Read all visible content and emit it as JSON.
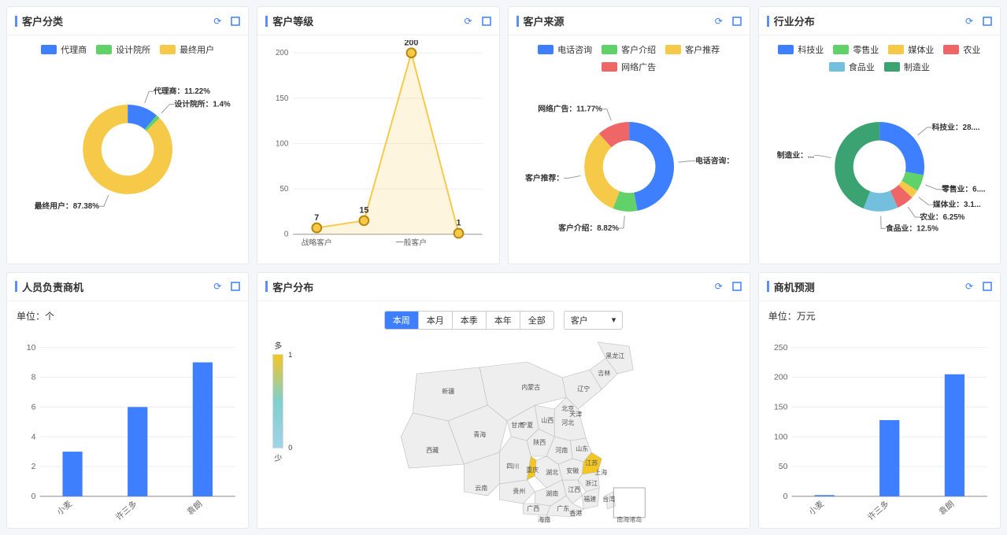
{
  "colors": {
    "blue": "#3d7fff",
    "green": "#61d16a",
    "yellow": "#f7c948",
    "red": "#ee6666",
    "cyan": "#73c0de",
    "darkgreen": "#3ba272",
    "grid": "#e6e8eb",
    "text": "#333333"
  },
  "cards": {
    "customer_category": {
      "title": "客户分类",
      "type": "donut",
      "legend": [
        {
          "label": "代理商",
          "color": "#3d7fff"
        },
        {
          "label": "设计院所",
          "color": "#61d16a"
        },
        {
          "label": "最终用户",
          "color": "#f7c948"
        }
      ],
      "slices": [
        {
          "label": "代理商",
          "pct": 11.22,
          "color": "#3d7fff",
          "text": "代理商：11.22%"
        },
        {
          "label": "设计院所",
          "pct": 1.4,
          "color": "#61d16a",
          "text": "设计院所：1.4%"
        },
        {
          "label": "最终用户",
          "pct": 87.38,
          "color": "#f7c948",
          "text": "最终用户：87.38%"
        }
      ]
    },
    "customer_level": {
      "title": "客户等级",
      "type": "line",
      "ylim": [
        0,
        200
      ],
      "ytick_step": 50,
      "line_color": "#f7c948",
      "marker_stroke": "#b8860b",
      "points": [
        {
          "x": "战略客户",
          "y": 7,
          "label": "7"
        },
        {
          "x": "",
          "y": 15,
          "label": "15"
        },
        {
          "x": "一般客户",
          "y": 200,
          "label": "200"
        },
        {
          "x": "",
          "y": 1,
          "label": "1"
        }
      ]
    },
    "customer_source": {
      "title": "客户来源",
      "type": "donut",
      "legend": [
        {
          "label": "电话咨询",
          "color": "#3d7fff"
        },
        {
          "label": "客户介绍",
          "color": "#61d16a"
        },
        {
          "label": "客户推荐",
          "color": "#f7c948"
        },
        {
          "label": "网络广告",
          "color": "#ee6666"
        }
      ],
      "slices": [
        {
          "label": "电话咨询",
          "pct": 47.06,
          "color": "#3d7fff",
          "text": "电话咨询："
        },
        {
          "label": "客户介绍",
          "pct": 8.82,
          "color": "#61d16a",
          "text": "客户介绍：8.82%"
        },
        {
          "label": "客户推荐",
          "pct": 32.35,
          "color": "#f7c948",
          "text": "客户推荐："
        },
        {
          "label": "网络广告",
          "pct": 11.77,
          "color": "#ee6666",
          "text": "网络广告：11.77%"
        }
      ]
    },
    "industry_dist": {
      "title": "行业分布",
      "type": "donut",
      "legend": [
        {
          "label": "科技业",
          "color": "#3d7fff"
        },
        {
          "label": "零售业",
          "color": "#61d16a"
        },
        {
          "label": "媒体业",
          "color": "#f7c948"
        },
        {
          "label": "农业",
          "color": "#ee6666"
        },
        {
          "label": "食品业",
          "color": "#73c0de"
        },
        {
          "label": "制造业",
          "color": "#3ba272"
        }
      ],
      "slices": [
        {
          "label": "科技业",
          "pct": 28,
          "color": "#3d7fff",
          "text": "科技业：28...."
        },
        {
          "label": "零售业",
          "pct": 6,
          "color": "#61d16a",
          "text": "零售业：6...."
        },
        {
          "label": "媒体业",
          "pct": 3.1,
          "color": "#f7c948",
          "text": "媒体业：3.1..."
        },
        {
          "label": "农业",
          "pct": 6.25,
          "color": "#ee6666",
          "text": "农业：6.25%"
        },
        {
          "label": "食品业",
          "pct": 12.5,
          "color": "#73c0de",
          "text": "食品业：12.5%"
        },
        {
          "label": "制造业",
          "pct": 44.15,
          "color": "#3ba272",
          "text": "制造业：..."
        }
      ]
    },
    "staff_opportunity": {
      "title": "人员负责商机",
      "type": "bar",
      "subtitle": "单位：个",
      "ylim": [
        0,
        10
      ],
      "ytick_step": 2,
      "bar_color": "#3d7fff",
      "categories": [
        "小麦",
        "许三多",
        "袁朗"
      ],
      "values": [
        3,
        6,
        9
      ]
    },
    "customer_dist": {
      "title": "客户分布",
      "type": "map",
      "tabs": [
        "本周",
        "本月",
        "本季",
        "本年",
        "全部"
      ],
      "active_tab": "本周",
      "select_label": "客户",
      "visualmap": {
        "max_label": "多",
        "min_label": "少",
        "max": 1,
        "min": 0
      },
      "highlighted_provinces": [
        "江苏",
        "重庆"
      ],
      "provinces": [
        "黑龙江",
        "吉林",
        "辽宁",
        "内蒙古",
        "北京",
        "天津",
        "河北",
        "山西",
        "山东",
        "河南",
        "陕西",
        "宁夏",
        "甘肃",
        "青海",
        "新疆",
        "西藏",
        "四川",
        "重庆",
        "湖北",
        "安徽",
        "江苏",
        "上海",
        "浙江",
        "江西",
        "湖南",
        "贵州",
        "云南",
        "广西",
        "广东",
        "福建",
        "台湾",
        "海南",
        "香港",
        "南海诸岛"
      ]
    },
    "opportunity_forecast": {
      "title": "商机预测",
      "type": "bar",
      "subtitle": "单位：万元",
      "ylim": [
        0,
        250
      ],
      "ytick_step": 50,
      "bar_color": "#3d7fff",
      "categories": [
        "小麦",
        "许三多",
        "袁朗"
      ],
      "values": [
        2,
        128,
        205
      ]
    }
  },
  "icons": {
    "refresh": "↻",
    "expand": "◻"
  }
}
